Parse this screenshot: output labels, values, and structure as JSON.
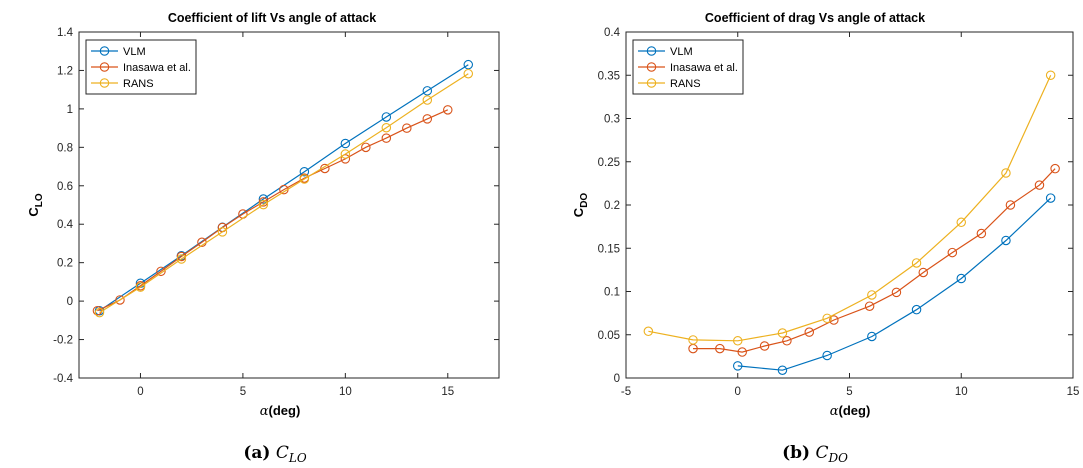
{
  "chart_data": [
    {
      "type": "line",
      "title": "Coefficient of lift Vs angle of attack",
      "xlabel_symbol": "α",
      "xlabel_text": "(deg)",
      "ylabel_main": "C",
      "ylabel_sub": "LO",
      "xlim": [
        -3,
        17.5
      ],
      "ylim": [
        -0.4,
        1.4
      ],
      "xticks": [
        0,
        5,
        10,
        15
      ],
      "yticks": [
        -0.4,
        -0.2,
        0,
        0.2,
        0.4,
        0.6,
        0.8,
        1,
        1.2,
        1.4
      ],
      "ytick_labels": [
        "-0.4",
        "-0.2",
        "0",
        "0.2",
        "0.4",
        "0.6",
        "0.8",
        "1",
        "1.2",
        "1.4"
      ],
      "xtick_labels": [
        "0",
        "5",
        "10",
        "15"
      ],
      "legend_position": "top-left",
      "grid": false,
      "series": [
        {
          "name": "VLM",
          "color": "#0072BD",
          "x": [
            -2,
            0,
            2,
            4,
            6,
            8,
            10,
            12,
            14,
            16
          ],
          "y": [
            -0.05,
            0.093,
            0.236,
            0.384,
            0.531,
            0.673,
            0.82,
            0.958,
            1.094,
            1.23
          ]
        },
        {
          "name": "Inasawa et al.",
          "color": "#D95319",
          "x": [
            -2.1,
            -1,
            0,
            1,
            2,
            3,
            4,
            5,
            6,
            7,
            8,
            9,
            10,
            11,
            12,
            13,
            14,
            15
          ],
          "y": [
            -0.05,
            0.006,
            0.08,
            0.155,
            0.232,
            0.306,
            0.383,
            0.453,
            0.516,
            0.58,
            0.64,
            0.69,
            0.74,
            0.8,
            0.848,
            0.9,
            0.948,
            0.995
          ]
        },
        {
          "name": "RANS",
          "color": "#EDB120",
          "x": [
            -2,
            0,
            2,
            4,
            6,
            8,
            10,
            12,
            14,
            16
          ],
          "y": [
            -0.06,
            0.073,
            0.219,
            0.36,
            0.502,
            0.635,
            0.765,
            0.902,
            1.046,
            1.183
          ]
        }
      ],
      "caption_label": "(a)",
      "caption_main": "C",
      "caption_sub": "LO"
    },
    {
      "type": "line",
      "title": "Coefficient of drag Vs angle of attack",
      "xlabel_symbol": "α",
      "xlabel_text": "(deg)",
      "ylabel_main": "C",
      "ylabel_sub": "DO",
      "xlim": [
        -5,
        15
      ],
      "ylim": [
        0,
        0.4
      ],
      "xticks": [
        -5,
        0,
        5,
        10,
        15
      ],
      "yticks": [
        0,
        0.05,
        0.1,
        0.15,
        0.2,
        0.25,
        0.3,
        0.35,
        0.4
      ],
      "ytick_labels": [
        "0",
        "0.05",
        "0.1",
        "0.15",
        "0.2",
        "0.25",
        "0.3",
        "0.35",
        "0.4"
      ],
      "xtick_labels": [
        "-5",
        "0",
        "5",
        "10",
        "15"
      ],
      "legend_position": "top-left",
      "grid": false,
      "series": [
        {
          "name": "VLM",
          "color": "#0072BD",
          "x": [
            0,
            2,
            4,
            6,
            8,
            10,
            12,
            14
          ],
          "y": [
            0.014,
            0.009,
            0.026,
            0.048,
            0.079,
            0.115,
            0.159,
            0.208
          ]
        },
        {
          "name": "Inasawa et al.",
          "color": "#D95319",
          "x": [
            -2,
            -0.8,
            0.2,
            1.2,
            2.2,
            3.2,
            4.3,
            5.9,
            7.1,
            8.3,
            9.6,
            10.9,
            12.2,
            13.5,
            14.2
          ],
          "y": [
            0.034,
            0.034,
            0.03,
            0.037,
            0.043,
            0.053,
            0.067,
            0.083,
            0.099,
            0.122,
            0.145,
            0.167,
            0.2,
            0.223,
            0.242
          ]
        },
        {
          "name": "RANS",
          "color": "#EDB120",
          "x": [
            -4,
            -2,
            0,
            2,
            4,
            6,
            8,
            10,
            12,
            14
          ],
          "y": [
            0.054,
            0.044,
            0.043,
            0.052,
            0.069,
            0.096,
            0.133,
            0.18,
            0.237,
            0.35
          ]
        }
      ],
      "caption_label": "(b)",
      "caption_main": "C",
      "caption_sub": "DO"
    }
  ]
}
